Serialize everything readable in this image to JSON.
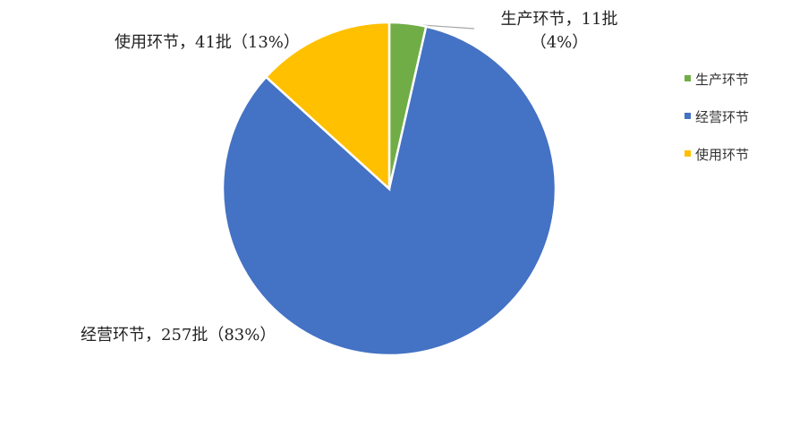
{
  "chart_data": {
    "type": "pie",
    "categories": [
      "生产环节",
      "经营环节",
      "使用环节"
    ],
    "values": [
      11,
      257,
      41
    ],
    "value_labels": [
      "生产环节，11批（4%）",
      "经营环节，257批（83%）",
      "使用环节，41批（13%）"
    ],
    "colors": [
      "#70ad47",
      "#4472c4",
      "#ffc000"
    ],
    "legend": "right"
  }
}
